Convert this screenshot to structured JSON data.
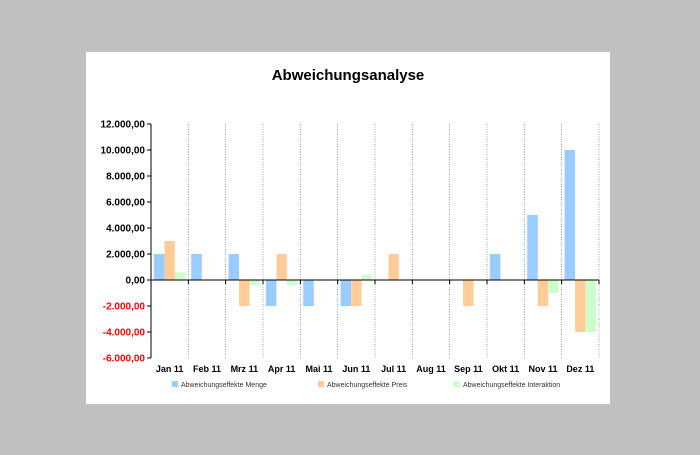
{
  "chart_data": {
    "type": "bar",
    "title": "Abweichungsanalyse",
    "xlabel": "",
    "ylabel": "",
    "ylim": [
      -6000,
      12000
    ],
    "yticks": [
      12000,
      10000,
      8000,
      6000,
      4000,
      2000,
      0,
      -2000,
      -4000,
      -6000
    ],
    "ytick_labels": [
      "12.000,00",
      "10.000,00",
      "8.000,00",
      "6.000,00",
      "4.000,00",
      "2.000,00",
      "0,00",
      "-2.000,00",
      "-4.000,00",
      "-6.000,00"
    ],
    "categories": [
      "Jan 11",
      "Feb 11",
      "Mrz 11",
      "Apr 11",
      "Mai 11",
      "Jun 11",
      "Jul 11",
      "Aug 11",
      "Sep 11",
      "Okt 11",
      "Nov 11",
      "Dez 11"
    ],
    "series": [
      {
        "name": "Abweichungseffekte Menge",
        "color": "#99ccff",
        "values": [
          2000,
          2000,
          2000,
          -2000,
          -2000,
          -2000,
          0,
          0,
          0,
          2000,
          5000,
          10000
        ]
      },
      {
        "name": "Abweichungseffekte Preis",
        "color": "#ffcc99",
        "values": [
          3000,
          0,
          -2000,
          2000,
          0,
          -2000,
          2000,
          0,
          -2000,
          0,
          -2000,
          -4000
        ]
      },
      {
        "name": "Abweichungseffekte Interaktion",
        "color": "#ccffcc",
        "values": [
          600,
          0,
          -400,
          -400,
          0,
          400,
          0,
          0,
          0,
          0,
          -1000,
          -4000
        ]
      }
    ],
    "negative_label_color": "#ff0000",
    "legend_position": "bottom"
  }
}
